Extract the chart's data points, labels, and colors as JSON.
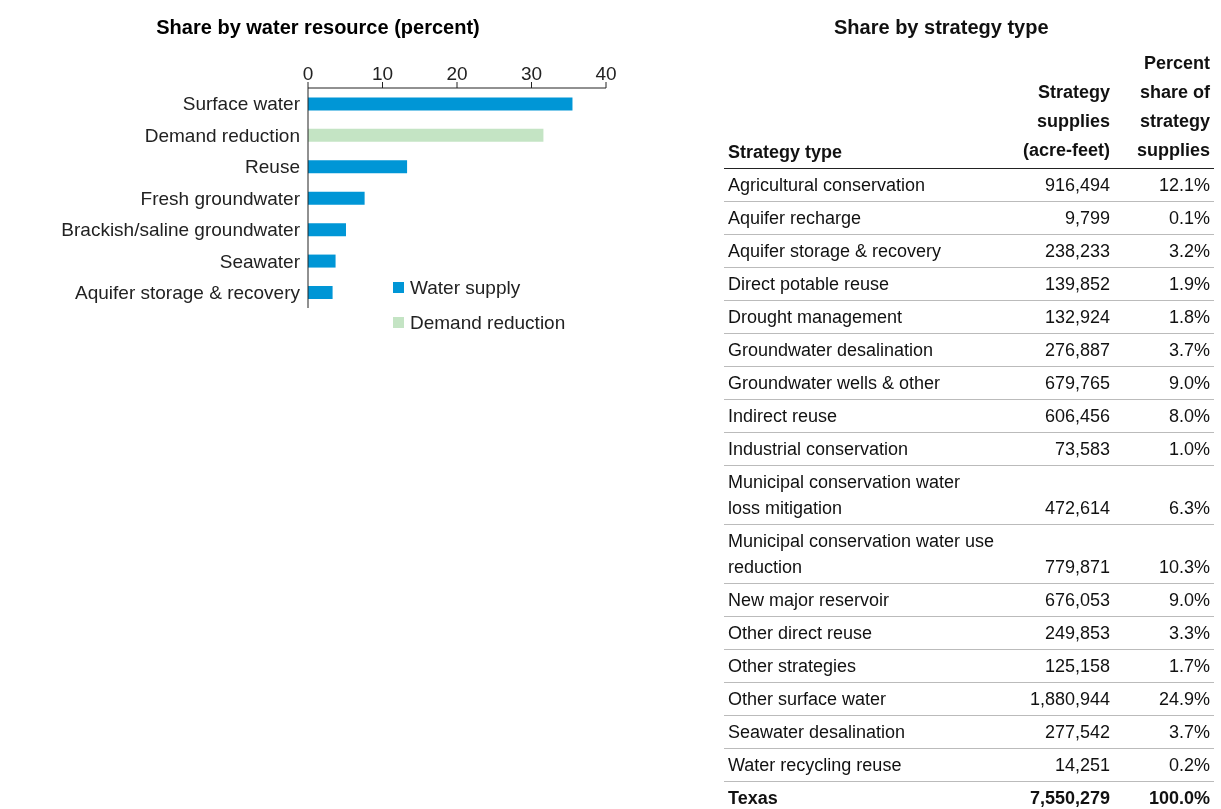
{
  "chart_data": [
    {
      "type": "bar",
      "title": "Share by water resource (percent)",
      "orientation": "horizontal",
      "stacked": true,
      "categories": [
        "Surface water",
        "Demand reduction",
        "Reuse",
        "Fresh groundwater",
        "Brackish/saline groundwater",
        "Seawater",
        "Aquifer storage & recovery"
      ],
      "series": [
        {
          "name": "Water supply",
          "color": "#0096d6",
          "values": [
            35.5,
            null,
            13.3,
            7.6,
            5.1,
            3.7,
            3.3
          ]
        },
        {
          "name": "Demand reduction",
          "color": "#c4e4c4",
          "values": [
            null,
            31.6,
            null,
            null,
            null,
            null,
            null
          ]
        }
      ],
      "xlim": [
        0,
        40
      ],
      "xticks": [
        0,
        10,
        20,
        30,
        40
      ],
      "legend": "bottom right"
    },
    {
      "type": "other",
      "title": "Share by strategy type",
      "ylabel": "Strategy type",
      "data_labels": true,
      "categories": [
        "Agricultural conservation",
        "Aquifer recharge",
        "Aquifer storage & recovery",
        "Direct potable reuse",
        "Drought management",
        "Groundwater desalination",
        "Groundwater wells & other",
        "Indirect reuse",
        "Industrial conservation",
        "Municipal conservation water loss mitigation",
        "Municipal conservation water use reduction",
        "New major reservoir",
        "Other direct reuse",
        "Other strategies",
        "Other surface water",
        "Seawater desalination",
        "Water recycling reuse",
        "Texas"
      ],
      "series": [
        {
          "name": "Strategy supplies (acre-feet)",
          "values": [
            916494,
            9799,
            238233,
            139852,
            132924,
            276887,
            679765,
            606456,
            73583,
            472614,
            779871,
            676053,
            249853,
            125158,
            1880944,
            277542,
            14251,
            7550279
          ],
          "value_labels": [
            "916,494",
            "9,799",
            "238,233",
            "139,852",
            "132,924",
            "276,887",
            "679,765",
            "606,456",
            "73,583",
            "472,614",
            "779,871",
            "676,053",
            "249,853",
            "125,158",
            "1,880,944",
            "277,542",
            "14,251",
            "7,550,279"
          ]
        },
        {
          "name": "Percent share of strategy supplies",
          "values": [
            12.1,
            0.1,
            3.2,
            1.9,
            1.8,
            3.7,
            9.0,
            8.0,
            1.0,
            6.3,
            10.3,
            9.0,
            3.3,
            1.7,
            24.9,
            3.7,
            0.2,
            100.0
          ],
          "value_labels": [
            "12.1%",
            "0.1%",
            "3.2%",
            "1.9%",
            "1.8%",
            "3.7%",
            "9.0%",
            "8.0%",
            "1.0%",
            "6.3%",
            "10.3%",
            "9.0%",
            "3.3%",
            "1.7%",
            "24.9%",
            "3.7%",
            "0.2%",
            "100.0%"
          ]
        }
      ]
    }
  ]
}
